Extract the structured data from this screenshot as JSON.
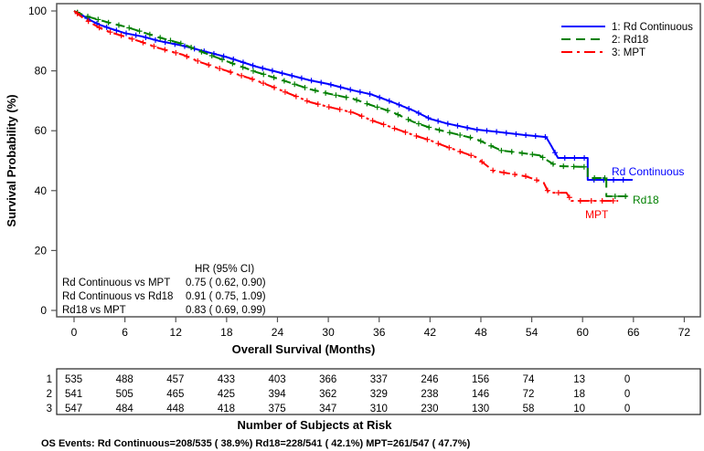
{
  "chart_data": {
    "type": "line",
    "subtype": "kaplan-meier",
    "title": "",
    "xlabel": "Overall Survival (Months)",
    "ylabel": "Survival Probability (%)",
    "xlim": [
      0,
      72
    ],
    "ylim": [
      0,
      100
    ],
    "x_ticks": [
      0,
      6,
      12,
      18,
      24,
      30,
      36,
      42,
      48,
      54,
      60,
      66,
      72
    ],
    "y_ticks": [
      0,
      20,
      40,
      60,
      80,
      100
    ],
    "grid": false,
    "legend_position": "top-right",
    "series": [
      {
        "id": "1",
        "name": "Rd Continuous",
        "legend_label": "1: Rd Continuous",
        "end_label": "Rd Continuous",
        "color": "#0000ff",
        "line_style": "solid",
        "points": [
          [
            0,
            100
          ],
          [
            1,
            98.5
          ],
          [
            2,
            96.8
          ],
          [
            3,
            95.4
          ],
          [
            4.2,
            94.2
          ],
          [
            6,
            92.6
          ],
          [
            8,
            91.5
          ],
          [
            10,
            90
          ],
          [
            12.8,
            88.4
          ],
          [
            15,
            86.8
          ],
          [
            18,
            84.6
          ],
          [
            21.5,
            81.4
          ],
          [
            24,
            79.6
          ],
          [
            27.9,
            76.8
          ],
          [
            30,
            75.6
          ],
          [
            33,
            73.4
          ],
          [
            35,
            72.2
          ],
          [
            37.6,
            69.5
          ],
          [
            40,
            66.8
          ],
          [
            42,
            64
          ],
          [
            44,
            62.4
          ],
          [
            47.4,
            60.4
          ],
          [
            50,
            59.6
          ],
          [
            53,
            58.6
          ],
          [
            55.7,
            57.9
          ],
          [
            56.3,
            55
          ],
          [
            57.1,
            50.9
          ],
          [
            60.6,
            50.9
          ],
          [
            60.6,
            43.6
          ],
          [
            65.9,
            43.6
          ]
        ]
      },
      {
        "id": "2",
        "name": "Rd18",
        "legend_label": "2: Rd18",
        "end_label": "Rd18",
        "color": "#008000",
        "line_style": "dashed",
        "points": [
          [
            0,
            100
          ],
          [
            1,
            98.8
          ],
          [
            2,
            97.8
          ],
          [
            3,
            97
          ],
          [
            4.2,
            96
          ],
          [
            6,
            94.8
          ],
          [
            8,
            93
          ],
          [
            10,
            91.2
          ],
          [
            12.8,
            89
          ],
          [
            15,
            86.4
          ],
          [
            18,
            83.2
          ],
          [
            21.5,
            79.6
          ],
          [
            24,
            77.4
          ],
          [
            27.9,
            73.8
          ],
          [
            30,
            72.4
          ],
          [
            33,
            70.6
          ],
          [
            35,
            68.6
          ],
          [
            37.6,
            66.2
          ],
          [
            40,
            63
          ],
          [
            42,
            61
          ],
          [
            44,
            59.6
          ],
          [
            47.4,
            57.3
          ],
          [
            50.4,
            53.4
          ],
          [
            54.9,
            51.8
          ],
          [
            56.9,
            48.2
          ],
          [
            60.6,
            47.9
          ],
          [
            60.6,
            44.2
          ],
          [
            62.8,
            44.2
          ],
          [
            62.8,
            38.1
          ],
          [
            65.7,
            38.1
          ]
        ]
      },
      {
        "id": "3",
        "name": "MPT",
        "legend_label": "3: MPT",
        "end_label": "MPT",
        "color": "#ff0000",
        "line_style": "dash-dot",
        "points": [
          [
            0,
            100
          ],
          [
            1,
            97.8
          ],
          [
            2,
            96
          ],
          [
            3,
            94.4
          ],
          [
            4.2,
            93
          ],
          [
            6,
            91.4
          ],
          [
            8,
            89.6
          ],
          [
            10,
            87.6
          ],
          [
            12.8,
            85.4
          ],
          [
            15,
            82.8
          ],
          [
            18,
            80
          ],
          [
            21.5,
            76.8
          ],
          [
            24,
            74
          ],
          [
            27.9,
            69.5
          ],
          [
            30,
            68
          ],
          [
            33,
            66
          ],
          [
            35,
            63.6
          ],
          [
            37.6,
            61
          ],
          [
            40,
            58.6
          ],
          [
            42,
            56.8
          ],
          [
            44,
            54.6
          ],
          [
            47.4,
            51.2
          ],
          [
            49.5,
            46.6
          ],
          [
            53.3,
            44.8
          ],
          [
            55.4,
            42.7
          ],
          [
            56,
            39.3
          ],
          [
            58.1,
            39.3
          ],
          [
            58.7,
            36.6
          ],
          [
            64.2,
            36.6
          ]
        ]
      }
    ],
    "hazard_ratios": {
      "header": "HR (95% CI)",
      "rows": [
        {
          "comparison": "Rd Continuous vs MPT",
          "value": "0.75 ( 0.62,  0.90)"
        },
        {
          "comparison": "Rd Continuous vs Rd18",
          "value": "0.91 ( 0.75,  1.09)"
        },
        {
          "comparison": "Rd18 vs MPT",
          "value": "0.83 ( 0.69,  0.99)"
        }
      ]
    },
    "at_risk": {
      "title": "Number of Subjects at Risk",
      "times": [
        0,
        6,
        12,
        18,
        24,
        30,
        36,
        42,
        48,
        54,
        60,
        66
      ],
      "rows": [
        {
          "label": "1",
          "values": [
            "535",
            "488",
            "457",
            "433",
            "403",
            "366",
            "337",
            "246",
            "156",
            "74",
            "13",
            "0"
          ]
        },
        {
          "label": "2",
          "values": [
            "541",
            "505",
            "465",
            "425",
            "394",
            "362",
            "329",
            "238",
            "146",
            "72",
            "18",
            "0"
          ]
        },
        {
          "label": "3",
          "values": [
            "547",
            "484",
            "448",
            "418",
            "375",
            "347",
            "310",
            "230",
            "130",
            "58",
            "10",
            "0"
          ]
        }
      ]
    },
    "footnote": "OS Events: Rd Continuous=208/535 ( 38.9%)  Rd18=228/541 ( 42.1%)  MPT=261/547 ( 47.7%)"
  }
}
